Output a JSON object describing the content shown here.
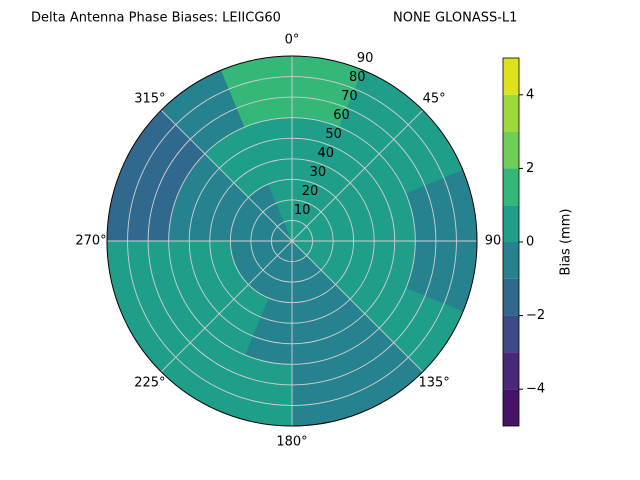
{
  "chart_data": {
    "type": "polar_contour",
    "title": "Delta Antenna Phase Biases: LEIICG60",
    "subtitle": "NONE GLONASS-L1",
    "azimuth_bins": [
      0,
      22.5,
      45,
      67.5,
      90,
      112.5,
      135,
      157.5,
      180,
      202.5,
      225,
      247.5,
      270,
      292.5,
      315,
      337.5,
      360
    ],
    "zenith_bins": [
      0,
      30,
      60,
      90
    ],
    "values": [
      [
        0.5,
        0.5,
        0.5,
        0.5,
        0.5,
        0.5,
        -0.5,
        -0.5,
        -0.5,
        -0.5,
        -0.5,
        -0.5,
        -0.5,
        -0.5,
        -0.5,
        0.5
      ],
      [
        0.5,
        0.5,
        0.5,
        0.5,
        0.5,
        0.5,
        -0.5,
        -0.5,
        -0.5,
        0.5,
        0.5,
        0.5,
        -0.5,
        -0.5,
        0.5,
        0.5
      ],
      [
        1.5,
        0.5,
        0.5,
        -0.5,
        -0.5,
        0.5,
        -0.5,
        -0.5,
        0.5,
        0.5,
        0.5,
        0.5,
        -1.5,
        -1.5,
        -0.5,
        1.5
      ]
    ],
    "levels": [
      -5,
      -4,
      -3,
      -2,
      -1,
      0,
      1,
      2,
      3,
      4,
      5
    ],
    "colors": [
      "#471365",
      "#482878",
      "#3e4989",
      "#31688e",
      "#26828e",
      "#1f9e89",
      "#35b779",
      "#6ece58",
      "#9dd93b",
      "#dde318"
    ],
    "rlim": [
      0,
      90
    ],
    "rticks": [
      10,
      20,
      30,
      40,
      50,
      60,
      70,
      80,
      90
    ],
    "thetaticks": [
      {
        "value": 0,
        "label": "0°"
      },
      {
        "value": 45,
        "label": "45°"
      },
      {
        "value": 90,
        "label": "90"
      },
      {
        "value": 135,
        "label": "135°"
      },
      {
        "value": 180,
        "label": "180°"
      },
      {
        "value": 225,
        "label": "225°"
      },
      {
        "value": 270,
        "label": "270°"
      },
      {
        "value": 315,
        "label": "315°"
      }
    ],
    "colorbar_label": "Bias (mm)",
    "colorbar_ticks": [
      {
        "value": -4,
        "label": "−4"
      },
      {
        "value": -2,
        "label": "−2"
      },
      0,
      2,
      4
    ],
    "grid": true
  }
}
